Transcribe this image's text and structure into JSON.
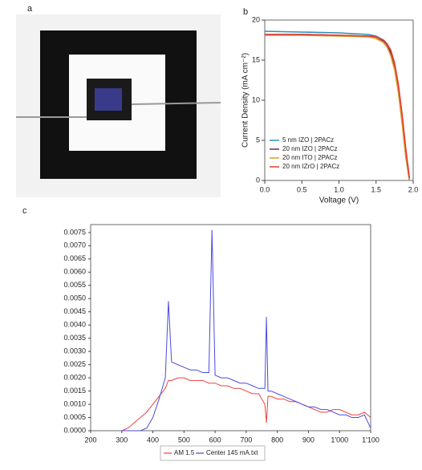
{
  "photo_label": "a",
  "chart_data": [
    {
      "type": "line",
      "label": "b",
      "xlabel": "Voltage (V)",
      "ylabel": "Current Density (mA cm⁻²)",
      "xlim": [
        0,
        2.0
      ],
      "ylim": [
        0,
        20
      ],
      "xticks": [
        {
          "value": 0,
          "label": "0.0"
        },
        {
          "value": 0.5,
          "label": "0.5"
        },
        {
          "value": 1.0,
          "label": "1.0"
        },
        {
          "value": 1.5,
          "label": "1.5"
        },
        {
          "value": 2.0,
          "label": "2.0"
        }
      ],
      "yticks": [
        0,
        5,
        10,
        15,
        20
      ],
      "legend": "lower left",
      "grid": false,
      "x": [
        0,
        0.5,
        1.0,
        1.4,
        1.5,
        1.6,
        1.65,
        1.7,
        1.75,
        1.8,
        1.85,
        1.9,
        1.95
      ],
      "series": [
        {
          "name": "5 nm IZO | 2PACz",
          "color": "#2f8fb5",
          "values": [
            18.6,
            18.5,
            18.4,
            18.2,
            18.0,
            17.5,
            17.0,
            16.0,
            14.3,
            11.5,
            7.5,
            3.0,
            0
          ]
        },
        {
          "name": "20 nm IZO | 2PACz",
          "color": "#6b2a5e",
          "values": [
            18.2,
            18.2,
            18.1,
            18.0,
            17.9,
            17.4,
            16.9,
            15.9,
            14.2,
            11.5,
            7.8,
            3.5,
            0
          ]
        },
        {
          "name": "20 nm ITO | 2PACz",
          "color": "#d89a2a",
          "values": [
            18.1,
            18.1,
            18.0,
            17.9,
            17.7,
            17.2,
            16.6,
            15.5,
            13.8,
            11.0,
            7.2,
            3.0,
            0
          ]
        },
        {
          "name": "20 nm IZrO | 2PACz",
          "color": "#e8392c",
          "values": [
            18.2,
            18.2,
            18.1,
            18.0,
            17.9,
            17.5,
            17.0,
            16.2,
            14.6,
            12.0,
            8.3,
            4.0,
            0.3
          ]
        }
      ]
    },
    {
      "type": "line",
      "label": "c",
      "xlim": [
        200,
        1100
      ],
      "ylim": [
        0,
        0.0078
      ],
      "xticks": [
        200,
        300,
        400,
        500,
        600,
        700,
        800,
        900,
        {
          "value": 1000,
          "label": "1'000"
        },
        {
          "value": 1100,
          "label": "1'100"
        }
      ],
      "yticks": [
        {
          "value": 0,
          "label": "0.0000"
        },
        {
          "value": 0.0005,
          "label": "0.0005"
        },
        {
          "value": 0.001,
          "label": "0.0010"
        },
        {
          "value": 0.0015,
          "label": "0.0015"
        },
        {
          "value": 0.002,
          "label": "0.0020"
        },
        {
          "value": 0.0025,
          "label": "0.0025"
        },
        {
          "value": 0.003,
          "label": "0.0030"
        },
        {
          "value": 0.0035,
          "label": "0.0035"
        },
        {
          "value": 0.004,
          "label": "0.0040"
        },
        {
          "value": 0.0045,
          "label": "0.0045"
        },
        {
          "value": 0.005,
          "label": "0.0050"
        },
        {
          "value": 0.0055,
          "label": "0.0055"
        },
        {
          "value": 0.006,
          "label": "0.0060"
        },
        {
          "value": 0.0065,
          "label": "0.0065"
        },
        {
          "value": 0.007,
          "label": "0.0070"
        },
        {
          "value": 0.0075,
          "label": "0.0075"
        }
      ],
      "legend": "below",
      "grid": false,
      "x": [
        300,
        320,
        340,
        360,
        380,
        400,
        420,
        440,
        450,
        460,
        480,
        500,
        520,
        540,
        560,
        580,
        590,
        600,
        620,
        640,
        660,
        680,
        700,
        720,
        740,
        760,
        765,
        770,
        780,
        800,
        820,
        840,
        860,
        880,
        900,
        920,
        940,
        960,
        980,
        1000,
        1020,
        1040,
        1060,
        1080,
        1100
      ],
      "series": [
        {
          "name": "AM 1.5",
          "color": "#f04040",
          "values": [
            0,
            0.0001,
            0.0003,
            0.0005,
            0.0007,
            0.001,
            0.0013,
            0.0016,
            0.0019,
            0.0019,
            0.002,
            0.002,
            0.0019,
            0.0019,
            0.0019,
            0.0018,
            0.0018,
            0.0018,
            0.0017,
            0.0017,
            0.0016,
            0.0016,
            0.0015,
            0.0014,
            0.0014,
            0.001,
            0.0003,
            0.0013,
            0.0013,
            0.0012,
            0.0012,
            0.0011,
            0.0011,
            0.001,
            0.0009,
            0.0008,
            0.0007,
            0.0007,
            0.0008,
            0.0008,
            0.0007,
            0.0006,
            0.0006,
            0.0007,
            0.0005
          ]
        },
        {
          "name": "Center 145 mA.txt",
          "color": "#4a4ae0",
          "values": [
            0,
            0,
            0,
            0,
            0.0001,
            0.0005,
            0.0012,
            0.002,
            0.0049,
            0.0026,
            0.0025,
            0.0024,
            0.0023,
            0.0023,
            0.0022,
            0.0022,
            0.0076,
            0.0021,
            0.002,
            0.002,
            0.0019,
            0.0018,
            0.0018,
            0.0017,
            0.0016,
            0.0016,
            0.0043,
            0.0015,
            0.0015,
            0.0014,
            0.0013,
            0.0012,
            0.0011,
            0.001,
            0.0009,
            0.0009,
            0.0008,
            0.0008,
            0.0007,
            0.0006,
            0.0006,
            0.0005,
            0.0005,
            0.0006,
            0.0001
          ]
        }
      ]
    }
  ]
}
